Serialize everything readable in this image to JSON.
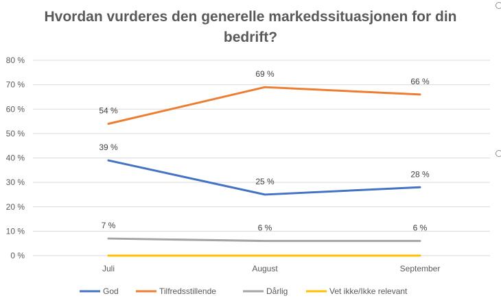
{
  "chart_data": {
    "type": "line",
    "title": "Hvordan vurderes den generelle markedssituasjonen for din bedrift?",
    "categories": [
      "Juli",
      "August",
      "September"
    ],
    "yticks": [
      "0 %",
      "10 %",
      "20 %",
      "30 %",
      "40 %",
      "50 %",
      "60 %",
      "70 %",
      "80 %"
    ],
    "ylim": [
      0,
      80
    ],
    "grid": true,
    "legend_position": "bottom",
    "series": [
      {
        "name": "God",
        "color": "#4472C4",
        "values": [
          39,
          25,
          28
        ],
        "labels": [
          "39 %",
          "25 %",
          "28 %"
        ]
      },
      {
        "name": "Tilfredsstillende",
        "color": "#ED7D31",
        "values": [
          54,
          69,
          66
        ],
        "labels": [
          "54 %",
          "69 %",
          "66 %"
        ]
      },
      {
        "name": "Dårlig",
        "color": "#A5A5A5",
        "values": [
          7,
          6,
          6
        ],
        "labels": [
          "7 %",
          "6 %",
          "6 %"
        ]
      },
      {
        "name": "Vet ikke/Ikke relevant",
        "color": "#FFC000",
        "values": [
          0,
          0,
          0
        ],
        "labels": []
      }
    ]
  }
}
